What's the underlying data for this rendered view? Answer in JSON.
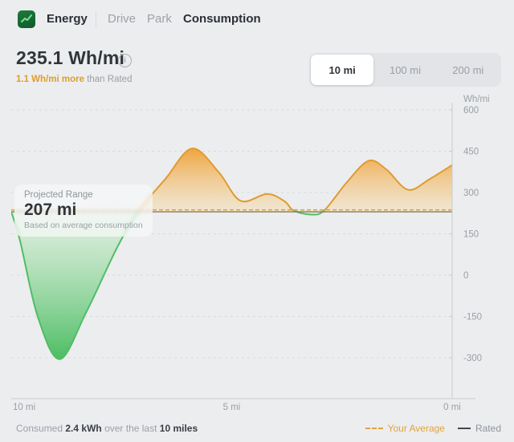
{
  "colors": {
    "accent_orange": "#E2A33C",
    "accent_green": "#4DBE63",
    "orange_stroke": "#E09B2F",
    "green_stroke": "#50BD66",
    "rated_line": "#857A64",
    "text_dark": "#30353A",
    "text_gray": "#9AA0A6"
  },
  "header": {
    "app_icon": "energy-chart-icon",
    "title": "Energy",
    "tabs": [
      {
        "label": "Drive",
        "active": false
      },
      {
        "label": "Park",
        "active": false
      },
      {
        "label": "Consumption",
        "active": true
      }
    ]
  },
  "stats": {
    "value": "235.1 Wh/mi",
    "info_icon": "info-icon",
    "delta_highlight": "1.1 Wh/mi more",
    "delta_suffix": " than Rated"
  },
  "range_selector": {
    "options": [
      {
        "label": "10 mi",
        "selected": true
      },
      {
        "label": "100 mi",
        "selected": false
      },
      {
        "label": "200 mi",
        "selected": false
      }
    ]
  },
  "tooltip": {
    "title": "Projected Range",
    "value": "207 mi",
    "subtitle": "Based on average consumption"
  },
  "chart_data": {
    "type": "area",
    "title": "Energy consumption over the last 10 miles",
    "ylabel": "Wh/mi",
    "y_ticks": [
      600,
      450,
      300,
      150,
      0,
      -150,
      -300
    ],
    "x_ticks": [
      {
        "label": "10 mi",
        "mi": 10
      },
      {
        "label": "5 mi",
        "mi": 5
      },
      {
        "label": "0 mi",
        "mi": 0
      }
    ],
    "x_range_mi": [
      10,
      0
    ],
    "ylim": [
      -449,
      622
    ],
    "grid": "dashed-horizontal",
    "legend_position": "bottom-right",
    "your_average_wh_mi": 235.1,
    "rated_wh_mi": 234.0,
    "series": [
      {
        "name": "Consumption",
        "points_mi_whmi": [
          [
            10.0,
            230
          ],
          [
            9.8,
            125
          ],
          [
            9.4,
            -150
          ],
          [
            8.9,
            -305
          ],
          [
            8.3,
            -135
          ],
          [
            7.6,
            100
          ],
          [
            7.1,
            235
          ],
          [
            6.5,
            350
          ],
          [
            5.9,
            460
          ],
          [
            5.3,
            375
          ],
          [
            4.8,
            270
          ],
          [
            4.2,
            295
          ],
          [
            3.8,
            268
          ],
          [
            3.6,
            235
          ],
          [
            3.2,
            220
          ],
          [
            2.9,
            235
          ],
          [
            2.4,
            335
          ],
          [
            1.9,
            415
          ],
          [
            1.5,
            385
          ],
          [
            1.0,
            310
          ],
          [
            0.5,
            350
          ],
          [
            0.0,
            400
          ]
        ]
      }
    ]
  },
  "footer": {
    "summary": {
      "prefix": "Consumed ",
      "kwh": "2.4 kWh",
      "middle": " over the last ",
      "miles": "10 miles"
    },
    "legend": [
      {
        "label": "Your Average",
        "style": "dashed",
        "color": "#E2A33C"
      },
      {
        "label": "Rated",
        "style": "solid",
        "color": "#45494D"
      }
    ]
  }
}
